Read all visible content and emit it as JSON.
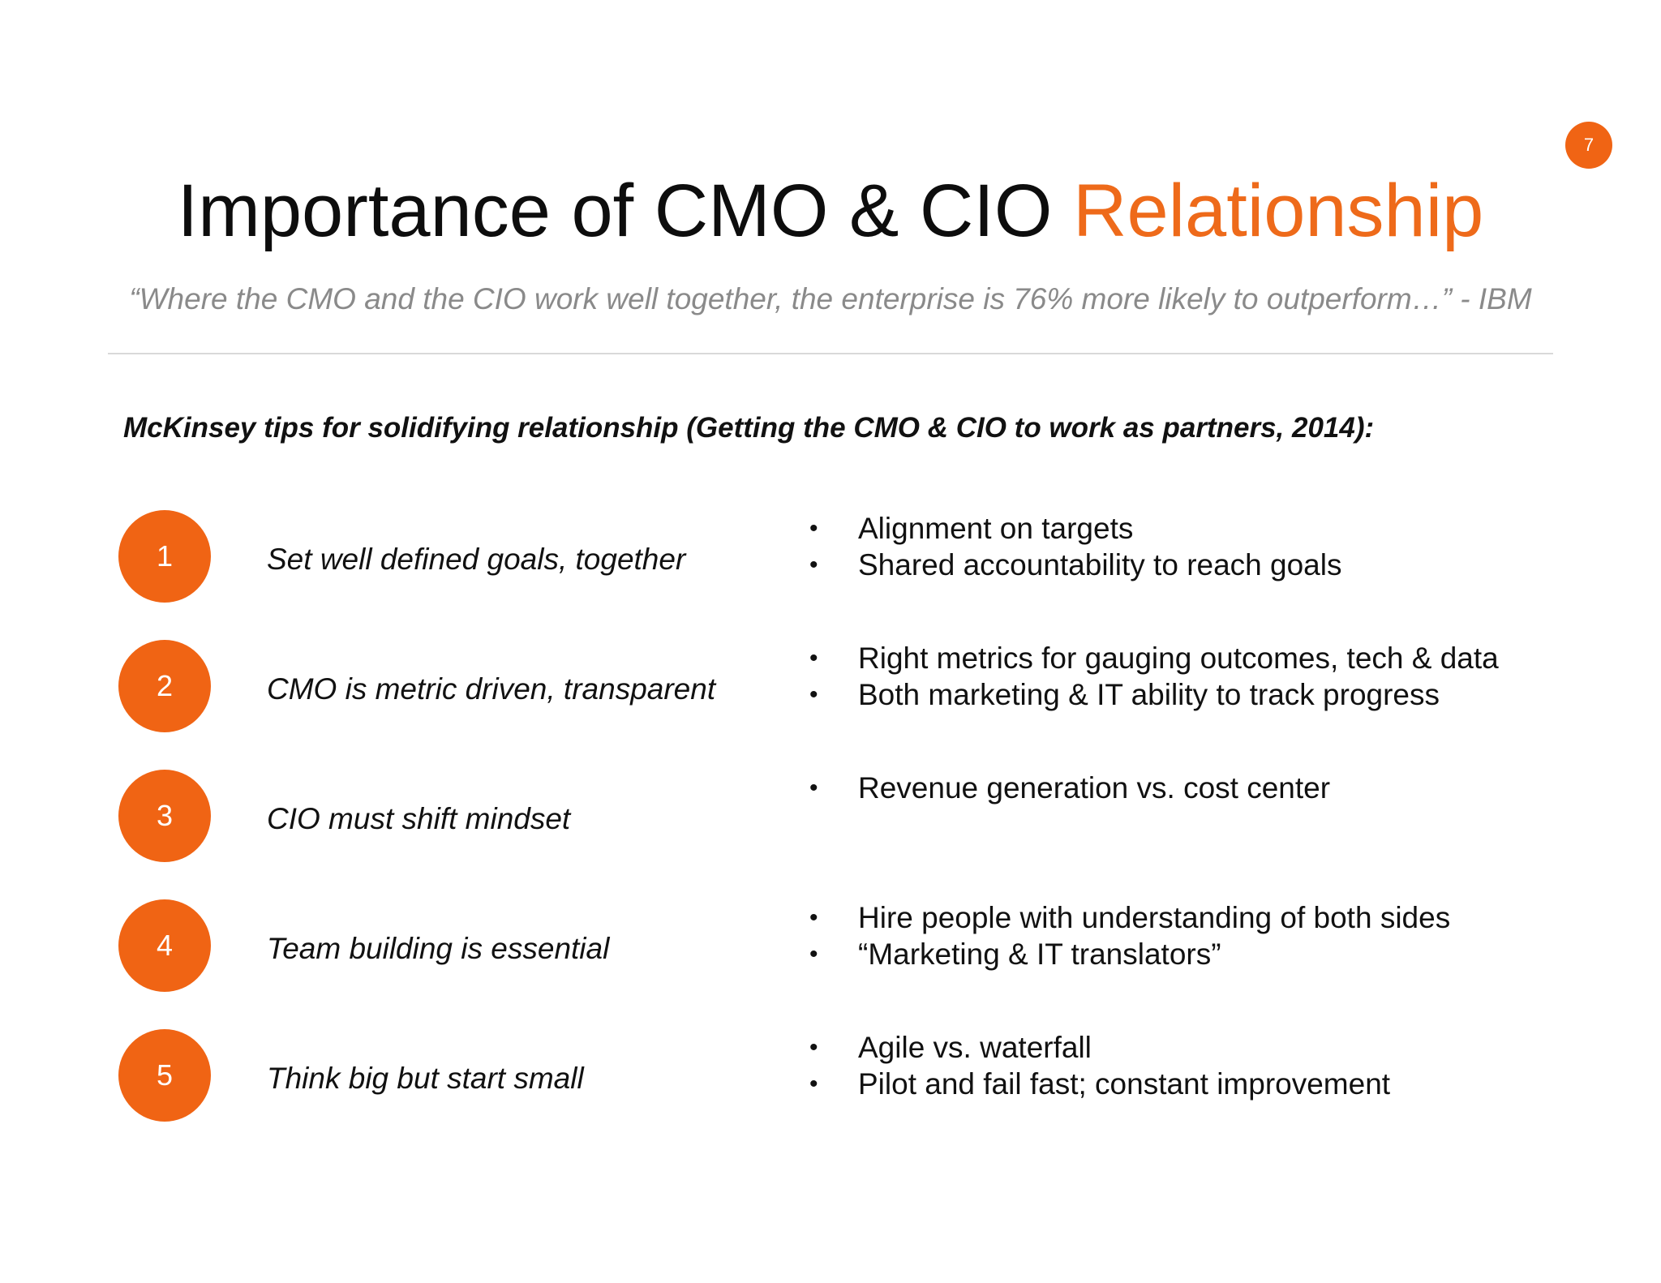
{
  "slide": {
    "page_number": "7",
    "title_main": "Importance of CMO & CIO",
    "title_accent": "Relationship",
    "quote": "“Where the CMO and the CIO work well together, the enterprise is 76% more likely to outperform…” - IBM",
    "subheading": "McKinsey tips for solidifying relationship (Getting the CMO & CIO to work as partners, 2014):"
  },
  "colors": {
    "accent": "#ee6a1a",
    "circle": "#f06414",
    "quote_gray": "#8a8a8a",
    "divider": "#d9d9d9"
  },
  "tips": [
    {
      "number": "1",
      "text": "Set well defined goals, together",
      "bullets": [
        "Alignment on targets",
        "Shared accountability to reach goals"
      ]
    },
    {
      "number": "2",
      "text": "CMO is metric driven, transparent",
      "bullets": [
        "Right metrics for gauging outcomes, tech & data",
        "Both marketing & IT ability to track progress"
      ]
    },
    {
      "number": "3",
      "text": "CIO must shift mindset",
      "bullets": [
        "Revenue generation vs. cost center"
      ]
    },
    {
      "number": "4",
      "text": "Team building is essential",
      "bullets": [
        "Hire people with understanding of both sides",
        "“Marketing & IT translators”"
      ]
    },
    {
      "number": "5",
      "text": "Think big but start small",
      "bullets": [
        "Agile vs. waterfall",
        "Pilot and fail fast; constant improvement"
      ]
    }
  ]
}
